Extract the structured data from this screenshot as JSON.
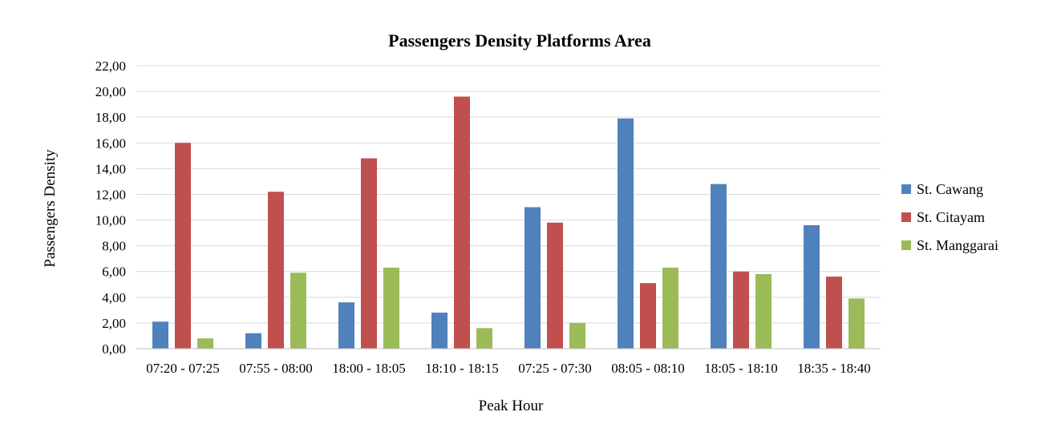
{
  "chart_data": {
    "type": "bar",
    "title": "Passengers Density Platforms Area",
    "xlabel": "Peak Hour",
    "ylabel": "Passengers Density",
    "ylim": [
      0,
      22
    ],
    "ytick_step": 2,
    "ytick_labels": [
      "0,00",
      "2,00",
      "4,00",
      "6,00",
      "8,00",
      "10,00",
      "12,00",
      "14,00",
      "16,00",
      "18,00",
      "20,00",
      "22,00"
    ],
    "grid": true,
    "legend_position": "right",
    "categories": [
      "07:20 - 07:25",
      "07:55 - 08:00",
      "18:00 - 18:05",
      "18:10 - 18:15",
      "07:25 - 07:30",
      "08:05 - 08:10",
      "18:05 - 18:10",
      "18:35 - 18:40"
    ],
    "series": [
      {
        "name": "St. Cawang",
        "color": "#4f81bd",
        "values": [
          2.1,
          1.2,
          3.6,
          2.8,
          11.0,
          17.9,
          12.8,
          9.6
        ]
      },
      {
        "name": "St. Citayam",
        "color": "#c0504d",
        "values": [
          16.0,
          12.2,
          14.8,
          19.6,
          9.8,
          5.1,
          6.0,
          5.6
        ]
      },
      {
        "name": "St. Manggarai",
        "color": "#9bbb59",
        "values": [
          0.8,
          5.9,
          6.3,
          1.6,
          2.0,
          6.3,
          5.8,
          3.9
        ]
      }
    ]
  }
}
